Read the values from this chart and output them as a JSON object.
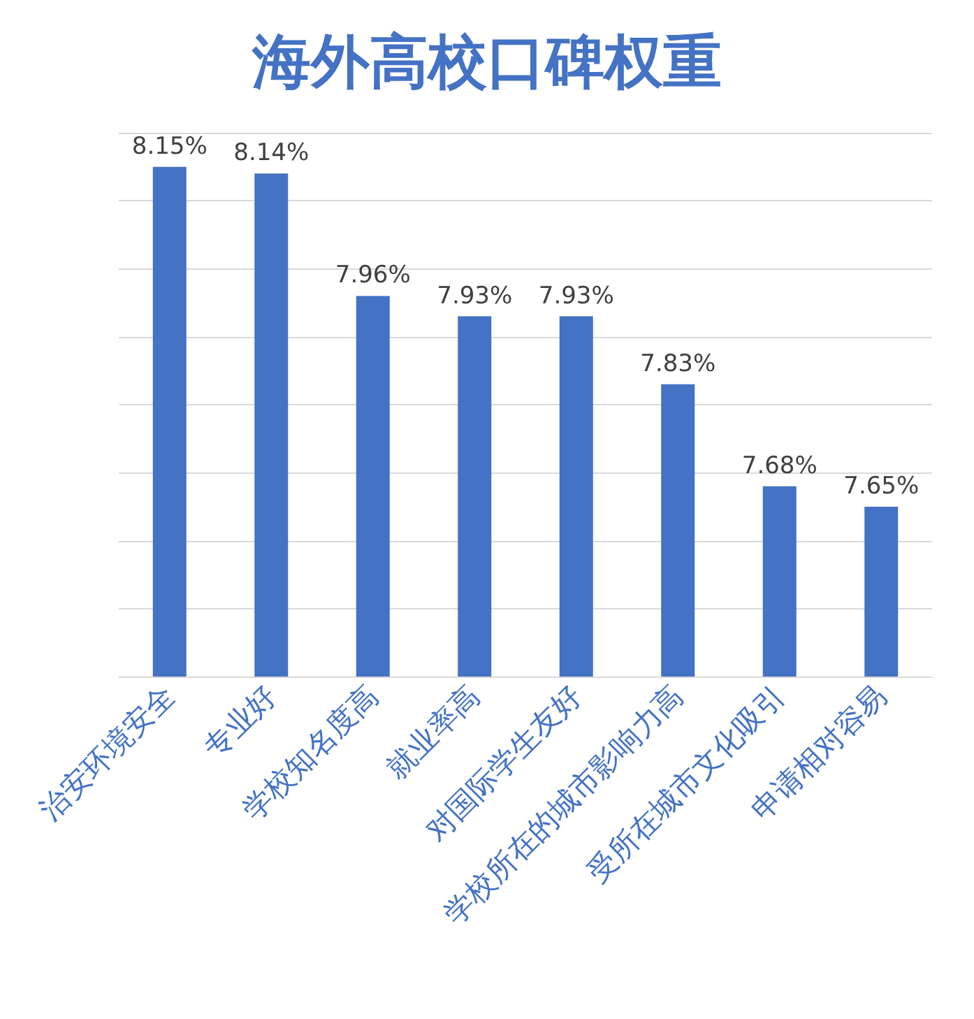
{
  "chart_data": {
    "type": "bar",
    "title": "海外高校口碑权重",
    "categories": [
      "治安环境安全",
      "专业好",
      "学校知名度高",
      "就业率高",
      "对国际学生友好",
      "学校所在的城市影响力高",
      "受所在城市文化吸引",
      "申请相对容易"
    ],
    "values": [
      8.15,
      8.14,
      7.96,
      7.93,
      7.93,
      7.83,
      7.68,
      7.65
    ],
    "value_labels": [
      "8.15%",
      "8.14%",
      "7.96%",
      "7.93%",
      "7.93%",
      "7.83%",
      "7.68%",
      "7.65%"
    ],
    "color": "#4472c4",
    "ylim": [
      7.4,
      8.2
    ],
    "yticks": [
      {
        "value": 7.4,
        "label": null
      },
      {
        "value": 7.5,
        "label": null
      },
      {
        "value": 7.6,
        "label": null
      },
      {
        "value": 7.7,
        "label": null
      },
      {
        "value": 7.8,
        "label": null
      },
      {
        "value": 7.9,
        "label": null
      },
      {
        "value": 8.0,
        "label": null
      },
      {
        "value": 8.1,
        "label": null
      },
      {
        "value": 8.2,
        "label": null
      }
    ],
    "grid": "y",
    "tick_labels": "x"
  }
}
